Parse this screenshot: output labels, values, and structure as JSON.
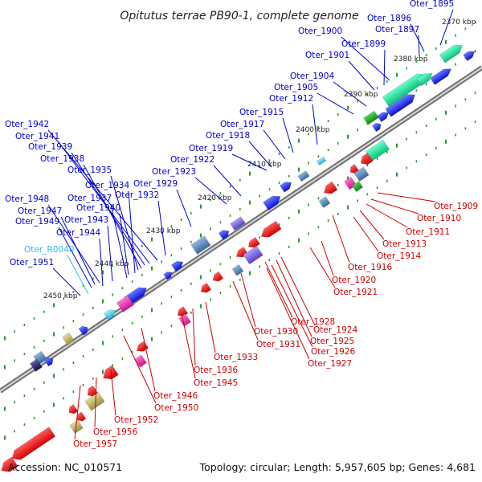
{
  "title": "Opitutus terrae PB90-1, complete genome",
  "footer": {
    "accession": "Accession: NC_010571",
    "summary": "Topology: circular; Length: 5,957,605 bp; Genes: 4,681"
  },
  "colors": {
    "plus_strand_label": "#0000cc",
    "minus_strand_label": "#cc0000",
    "rna_label": "#33bbee",
    "tick": "#33aa33",
    "backbone": "#888888"
  },
  "kbp_ticks": [
    "2370 kbp",
    "2380 kbp",
    "2390 kbp",
    "2400 kbp",
    "2410 kbp",
    "2420 kbp",
    "2430 kbp",
    "2440 kbp",
    "2450 kbp"
  ],
  "upper_labels": [
    "Oter_1895",
    "Oter_1896",
    "Oter_1897",
    "Oter_1900",
    "Oter_1899",
    "Oter_1901",
    "Oter_1904",
    "Oter_1905",
    "Oter_1912",
    "Oter_1915",
    "Oter_1917",
    "Oter_1918",
    "Oter_1919",
    "Oter_1922",
    "Oter_1923",
    "Oter_1929",
    "Oter_1942",
    "Oter_1941",
    "Oter_1939",
    "Oter_1938",
    "Oter_1935",
    "Oter_1934",
    "Oter_1940",
    "Oter_1937",
    "Oter_1932",
    "Oter_1948",
    "Oter_1947",
    "Oter_1949",
    "Oter_1943",
    "Oter_1944",
    "Oter_R0040",
    "Oter_1951"
  ],
  "lower_labels": [
    "Oter_1909",
    "Oter_1910",
    "Oter_1911",
    "Oter_1913",
    "Oter_1914",
    "Oter_1916",
    "Oter_1920",
    "Oter_1921",
    "Oter_1928",
    "Oter_1924",
    "Oter_1930",
    "Oter_1925",
    "Oter_1931",
    "Oter_1926",
    "Oter_1927",
    "Oter_1933",
    "Oter_1936",
    "Oter_1945",
    "Oter_1946",
    "Oter_1950",
    "Oter_1952",
    "Oter_1956",
    "Oter_1957"
  ]
}
